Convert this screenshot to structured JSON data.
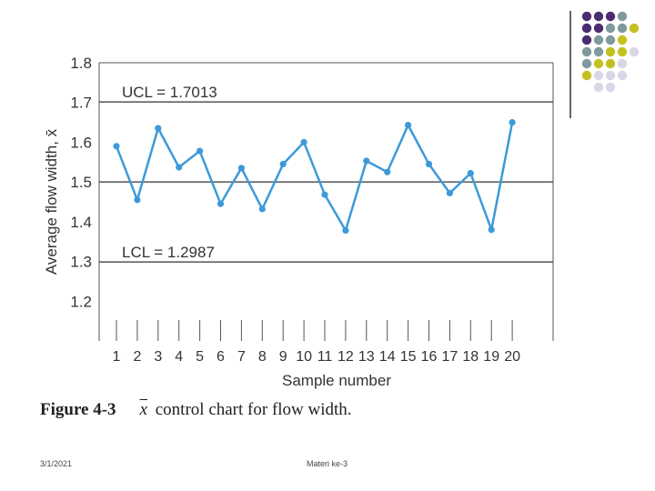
{
  "theme": {
    "line_color": "#3c9ad9",
    "grid_color": "#555555",
    "dot_colors": [
      "#4b2c6e",
      "#7f9a9c",
      "#c5c022",
      "#d9d7e6"
    ]
  },
  "chart_data": {
    "type": "line",
    "title": "",
    "xlabel": "Sample number",
    "ylabel": "Average flow width, x̄",
    "x": [
      1,
      2,
      3,
      4,
      5,
      6,
      7,
      8,
      9,
      10,
      11,
      12,
      13,
      14,
      15,
      16,
      17,
      18,
      19,
      20
    ],
    "x_tick_labels": [
      "1",
      "2",
      "3",
      "4",
      "5",
      "6",
      "7",
      "8",
      "9",
      "10",
      "11",
      "12",
      "13",
      "14",
      "15",
      "16",
      "17",
      "18",
      "19",
      "20"
    ],
    "y_tick_labels": [
      "1.2",
      "1.3",
      "1.4",
      "1.5",
      "1.6",
      "1.7",
      "1.8"
    ],
    "ylim": [
      1.1,
      1.8
    ],
    "series": [
      {
        "values": [
          1.59,
          1.455,
          1.635,
          1.537,
          1.578,
          1.445,
          1.535,
          1.432,
          1.545,
          1.6,
          1.468,
          1.378,
          1.553,
          1.525,
          1.643,
          1.545,
          1.472,
          1.522,
          1.38,
          1.65
        ]
      }
    ],
    "control_lines": [
      {
        "label": "UCL = 1.7013",
        "value": 1.7013
      },
      {
        "label": "",
        "value": 1.5
      },
      {
        "label": "LCL = 1.2987",
        "value": 1.2987
      }
    ],
    "grid": false
  },
  "caption": {
    "figure_label": "Figure 4-3",
    "xbar_symbol": "x",
    "text": "control chart for flow width."
  },
  "footer": {
    "date": "3/1/2021",
    "center": "Materi ke-3"
  }
}
